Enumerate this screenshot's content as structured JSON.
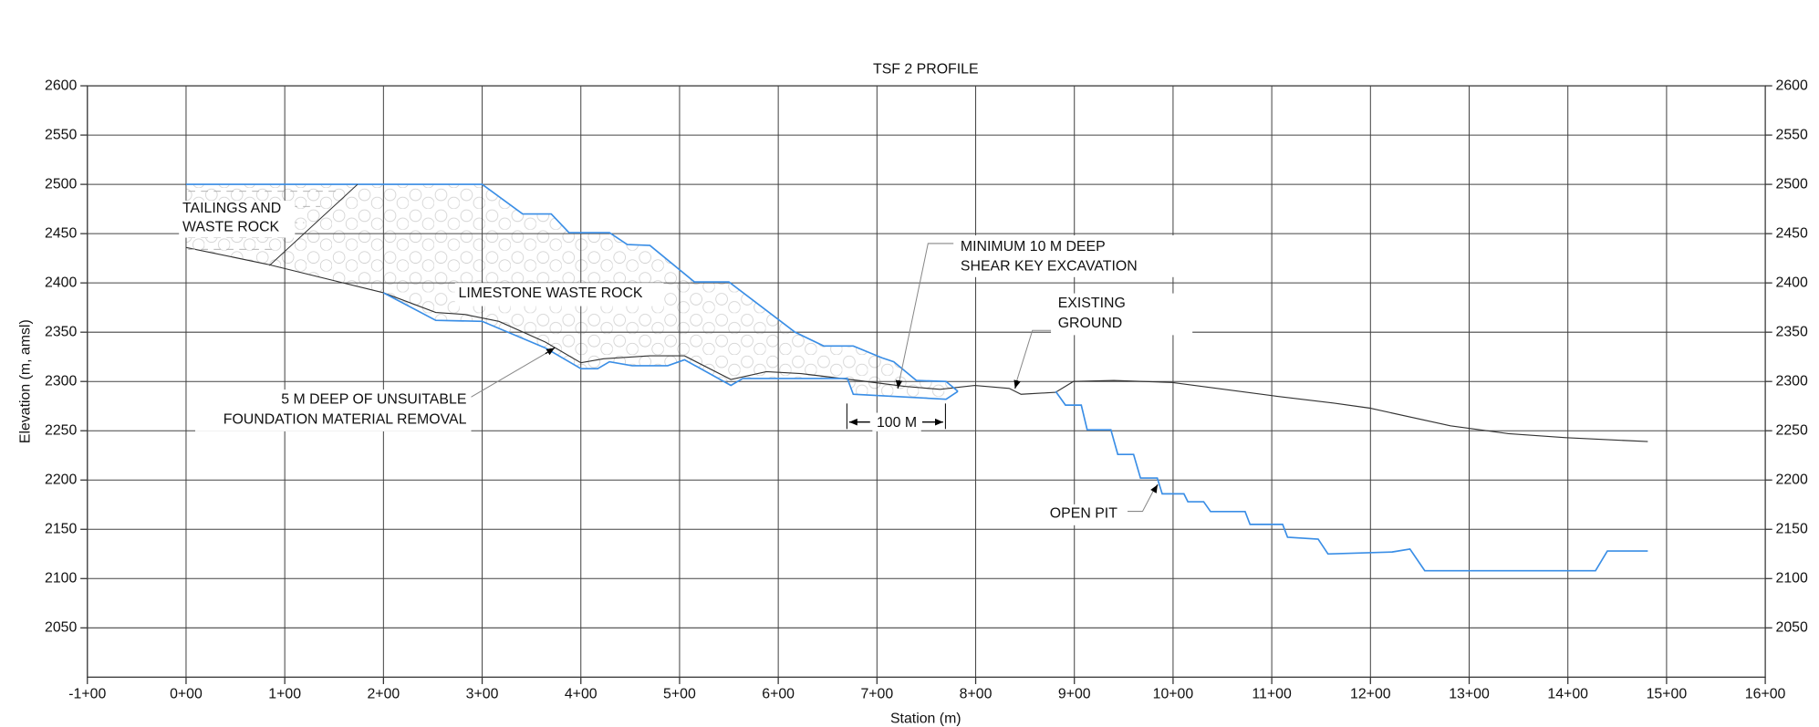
{
  "chart_data": {
    "type": "line",
    "title": "TSF 2 PROFILE",
    "xlabel": "Station (m)",
    "ylabel": "Elevation (m, amsl)",
    "xlim": [
      -100,
      1600
    ],
    "ylim": [
      2000,
      2600
    ],
    "xticks": [
      {
        "value": -100,
        "label": "-1+00"
      },
      {
        "value": 0,
        "label": "0+00"
      },
      {
        "value": 100,
        "label": "1+00"
      },
      {
        "value": 200,
        "label": "2+00"
      },
      {
        "value": 300,
        "label": "3+00"
      },
      {
        "value": 400,
        "label": "4+00"
      },
      {
        "value": 500,
        "label": "5+00"
      },
      {
        "value": 600,
        "label": "6+00"
      },
      {
        "value": 700,
        "label": "7+00"
      },
      {
        "value": 800,
        "label": "8+00"
      },
      {
        "value": 900,
        "label": "9+00"
      },
      {
        "value": 1000,
        "label": "10+00"
      },
      {
        "value": 1100,
        "label": "11+00"
      },
      {
        "value": 1200,
        "label": "12+00"
      },
      {
        "value": 1300,
        "label": "13+00"
      },
      {
        "value": 1400,
        "label": "14+00"
      },
      {
        "value": 1500,
        "label": "15+00"
      },
      {
        "value": 1600,
        "label": "16+00"
      }
    ],
    "yticks": [
      2050,
      2100,
      2150,
      2200,
      2250,
      2300,
      2350,
      2400,
      2450,
      2500,
      2550,
      2600
    ],
    "grid": true,
    "series": [
      {
        "color": "#333333",
        "x": [
          0,
          82,
          200,
          253,
          282,
          317,
          364,
          400,
          423,
          470,
          505,
          552,
          588,
          623,
          681,
          728,
          764,
          799,
          834,
          846,
          881,
          899,
          940,
          999,
          1105,
          1163,
          1199,
          1281,
          1340,
          1398,
          1481
        ],
        "values": [
          2436,
          2419,
          2390,
          2370,
          2368,
          2361,
          2340,
          2319,
          2323,
          2326,
          2326,
          2302,
          2310,
          2308,
          2301,
          2295,
          2292,
          2296,
          2293,
          2287,
          2289,
          2300,
          2301,
          2299,
          2285,
          2278,
          2273,
          2255,
          2247,
          2243,
          2239
        ]
      },
      {
        "color": "#3a8ee6",
        "x": [
          0,
          300,
          341,
          370,
          388,
          429,
          447,
          470,
          515,
          550,
          617,
          646,
          676,
          705,
          717,
          740,
          770,
          782
        ],
        "values": [
          2500,
          2500,
          2470,
          2470,
          2451,
          2451,
          2439,
          2438,
          2401,
          2401,
          2350,
          2336,
          2336,
          2324,
          2320,
          2301,
          2300,
          2290
        ]
      },
      {
        "color": "#3a8ee6",
        "x": [
          200,
          253,
          300,
          364,
          400,
          417,
          429,
          452,
          488,
          505,
          552,
          564,
          670,
          676,
          770,
          782
        ],
        "values": [
          2390,
          2362,
          2361,
          2334,
          2313,
          2313,
          2320,
          2316,
          2316,
          2322,
          2296,
          2303,
          2303,
          2287,
          2282,
          2290
        ]
      },
      {
        "color": "#3a8ee6",
        "x": [
          881,
          891,
          907,
          913,
          937,
          944,
          960,
          967,
          984,
          989,
          1011,
          1015,
          1031,
          1038,
          1073,
          1078,
          1111,
          1116,
          1147,
          1157,
          1222,
          1240,
          1255,
          1428,
          1440,
          1481
        ],
        "values": [
          2290,
          2276,
          2276,
          2251,
          2251,
          2226,
          2226,
          2202,
          2202,
          2186,
          2186,
          2178,
          2178,
          2168,
          2168,
          2155,
          2155,
          2142,
          2140,
          2125,
          2127,
          2130,
          2108,
          2108,
          2128,
          2128
        ]
      }
    ],
    "annotations": [
      {
        "lines": [
          "TAILINGS AND",
          "WASTE ROCK"
        ]
      },
      {
        "lines": [
          "LIMESTONE WASTE ROCK"
        ]
      },
      {
        "lines": [
          "5 M DEEP OF UNSUITABLE",
          "FOUNDATION MATERIAL REMOVAL"
        ]
      },
      {
        "lines": [
          "MINIMUM 10 M DEEP",
          "SHEAR KEY EXCAVATION"
        ]
      },
      {
        "lines": [
          "EXISTING",
          "GROUND"
        ]
      },
      {
        "lines": [
          "100 M"
        ]
      },
      {
        "lines": [
          "OPEN PIT"
        ]
      }
    ]
  }
}
